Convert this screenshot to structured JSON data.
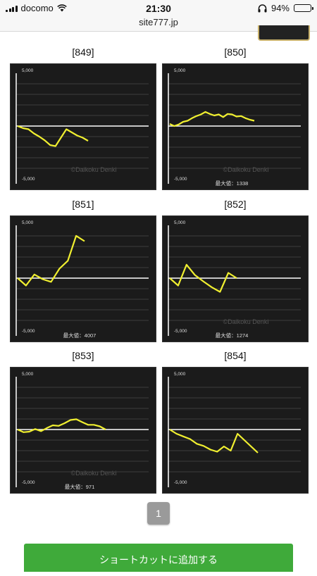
{
  "status_bar": {
    "carrier": "docomo",
    "time": "21:30",
    "battery": "94%"
  },
  "url_bar": {
    "url": "site777.jp"
  },
  "graphs": [
    {
      "label": "[849]",
      "ytop": "5,000",
      "ybottom": "-5,000",
      "watermark": "©Daikoku Denki",
      "max_text": "",
      "values": [
        0,
        -200,
        -300,
        -700,
        -1000,
        -1350,
        -1800,
        -1900,
        -1100,
        -300,
        -600,
        -900,
        -1100,
        -1400
      ]
    },
    {
      "label": "[850]",
      "ytop": "5,000",
      "ybottom": "-5,000",
      "watermark": "©Daikoku Denki",
      "max_text": "最大値：1338",
      "values": [
        200,
        0,
        150,
        400,
        500,
        750,
        950,
        1100,
        1338,
        1150,
        1000,
        1100,
        850,
        1150,
        1100,
        900,
        950,
        750,
        600,
        500
      ]
    },
    {
      "label": "[851]",
      "ytop": "5,000",
      "ybottom": "-5,000",
      "watermark": "",
      "max_text": "最大値：4007",
      "values": [
        0,
        -700,
        350,
        -100,
        -350,
        900,
        1650,
        4007,
        3500
      ]
    },
    {
      "label": "[852]",
      "ytop": "5,000",
      "ybottom": "-5,000",
      "watermark": "©Daikoku Denki",
      "max_text": "最大値：1274",
      "values": [
        0,
        -700,
        1274,
        300,
        -300,
        -850,
        -1300,
        500,
        0
      ]
    },
    {
      "label": "[853]",
      "ytop": "5,000",
      "ybottom": "-5,000",
      "watermark": "©Daikoku Denki",
      "max_text": "最大値：971",
      "values": [
        0,
        -250,
        -200,
        50,
        -150,
        150,
        400,
        350,
        600,
        900,
        971,
        700,
        450,
        450,
        300,
        0
      ]
    },
    {
      "label": "[854]",
      "ytop": "5,000",
      "ybottom": "-5,000",
      "watermark": "",
      "max_text": "",
      "values": [
        0,
        -400,
        -650,
        -900,
        -1350,
        -1550,
        -1900,
        -2100,
        -1600,
        -2000,
        -400,
        -1000,
        -1600,
        -2200
      ]
    }
  ],
  "pager": {
    "current_page": "1"
  },
  "shortcut": {
    "label": "ショートカットに追加する"
  },
  "colors": {
    "line": "#f0ef30",
    "baseline": "#ffffff",
    "panel": "#1b1b1b"
  }
}
